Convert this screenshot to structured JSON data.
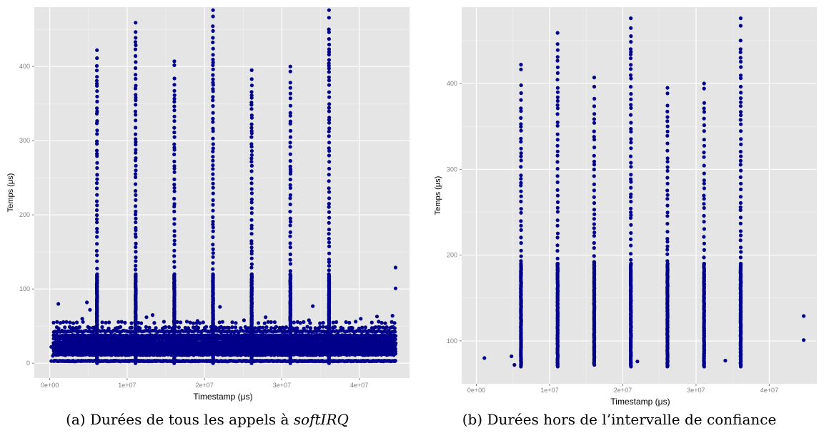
{
  "chart_data": [
    {
      "type": "scatter",
      "id": "a",
      "xlabel": "Timestamp (μs)",
      "ylabel": "Temps (μs)",
      "xlim": [
        -2000000,
        46500000
      ],
      "ylim": [
        -20,
        480
      ],
      "x_ticks": [
        0,
        10000000,
        20000000,
        30000000,
        40000000
      ],
      "x_tick_labels": [
        "0e+00",
        "1e+07",
        "2e+07",
        "3e+07",
        "4e+07"
      ],
      "y_ticks": [
        0,
        100,
        200,
        300,
        400
      ],
      "y_tick_labels": [
        "0",
        "100",
        "200",
        "300",
        "400"
      ],
      "grid": true,
      "point_color": "#00008b",
      "panel_background": "#e5e5e5",
      "caption_prefix": "(a) Durées de tous les appels à ",
      "caption_emph": "softIRQ",
      "bands": {
        "x_start": 500000,
        "x_end": 44700000,
        "levels": [
          3,
          12,
          16,
          20,
          24,
          28,
          33,
          37,
          43,
          48,
          55
        ]
      },
      "spikes": [
        {
          "x": 6100000,
          "top": 422
        },
        {
          "x": 11100000,
          "top": 459
        },
        {
          "x": 16100000,
          "top": 407
        },
        {
          "x": 21100000,
          "top": 476
        },
        {
          "x": 26100000,
          "top": 395
        },
        {
          "x": 31100000,
          "top": 400
        },
        {
          "x": 36100000,
          "top": 476
        }
      ],
      "points": [
        {
          "x": 200000,
          "y": 3
        },
        {
          "x": 200000,
          "y": 22
        },
        {
          "x": 400000,
          "y": 10
        },
        {
          "x": 1100000,
          "y": 80
        },
        {
          "x": 4800000,
          "y": 82
        },
        {
          "x": 5200000,
          "y": 72
        },
        {
          "x": 22000000,
          "y": 76
        },
        {
          "x": 34000000,
          "y": 77
        },
        {
          "x": 44700000,
          "y": 129
        },
        {
          "x": 44700000,
          "y": 101
        },
        {
          "x": 3500000,
          "y": 55
        },
        {
          "x": 4200000,
          "y": 60
        },
        {
          "x": 12500000,
          "y": 62
        },
        {
          "x": 13300000,
          "y": 65
        },
        {
          "x": 19100000,
          "y": 57
        },
        {
          "x": 25100000,
          "y": 58
        },
        {
          "x": 27900000,
          "y": 62
        },
        {
          "x": 33500000,
          "y": 58
        },
        {
          "x": 40200000,
          "y": 60
        },
        {
          "x": 42300000,
          "y": 63
        },
        {
          "x": 44300000,
          "y": 64
        }
      ]
    },
    {
      "type": "scatter",
      "id": "b",
      "xlabel": "Timestamp (μs)",
      "ylabel": "Temps (μs)",
      "xlim": [
        -2000000,
        46500000
      ],
      "ylim": [
        50,
        489
      ],
      "x_ticks": [
        0,
        10000000,
        20000000,
        30000000,
        40000000
      ],
      "x_tick_labels": [
        "0e+00",
        "1e+07",
        "2e+07",
        "3e+07",
        "4e+07"
      ],
      "y_ticks": [
        100,
        200,
        300,
        400
      ],
      "y_tick_labels": [
        "100",
        "200",
        "300",
        "400"
      ],
      "grid": true,
      "point_color": "#00008b",
      "panel_background": "#e5e5e5",
      "caption": "(b) Durées hors de l’intervalle de confiance",
      "spikes": [
        {
          "x": 6100000,
          "top": 422,
          "bottom": 70
        },
        {
          "x": 11100000,
          "top": 459,
          "bottom": 70
        },
        {
          "x": 16100000,
          "top": 407,
          "bottom": 72
        },
        {
          "x": 21100000,
          "top": 476,
          "bottom": 70
        },
        {
          "x": 26100000,
          "top": 395,
          "bottom": 70
        },
        {
          "x": 31100000,
          "top": 400,
          "bottom": 70
        },
        {
          "x": 36100000,
          "top": 476,
          "bottom": 70
        }
      ],
      "points": [
        {
          "x": 1100000,
          "y": 80
        },
        {
          "x": 4800000,
          "y": 82
        },
        {
          "x": 5200000,
          "y": 72
        },
        {
          "x": 22000000,
          "y": 76
        },
        {
          "x": 34000000,
          "y": 77
        },
        {
          "x": 44700000,
          "y": 129
        },
        {
          "x": 44700000,
          "y": 101
        }
      ]
    }
  ]
}
